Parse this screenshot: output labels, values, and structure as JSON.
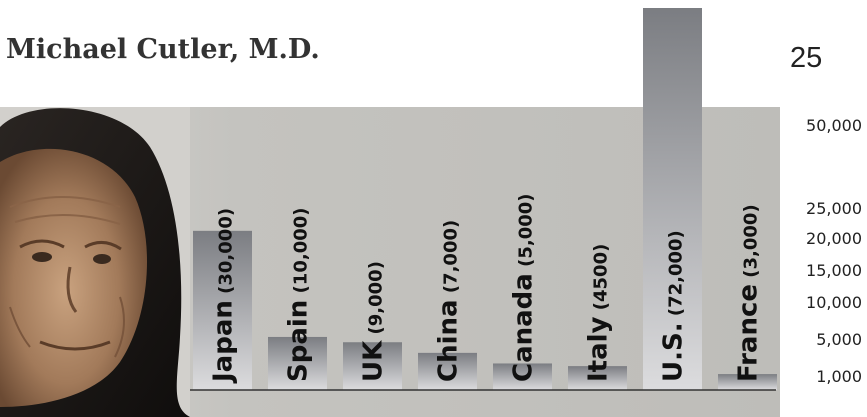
{
  "header": {
    "author": "Michael Cutler, M.D.",
    "page_number": "25"
  },
  "colors": {
    "panel": "#c2c1bd",
    "bar_top": "#7b7d82",
    "bar_bottom": "#dcdcde"
  },
  "chart_data": {
    "type": "bar",
    "title": "",
    "xlabel": "",
    "ylabel": "",
    "categories": [
      "Japan",
      "Spain",
      "UK",
      "China",
      "Canada",
      "Italy",
      "U.S.",
      "France"
    ],
    "value_labels": [
      "(30,000)",
      "(10,000)",
      "(9,000)",
      "(7,000)",
      "(5,000)",
      "(4500)",
      "(72,000)",
      "(3,000)"
    ],
    "values": [
      30000,
      10000,
      9000,
      7000,
      5000,
      4500,
      72000,
      3000
    ],
    "y_ticks": [
      {
        "value": 50000,
        "label": "50,000"
      },
      {
        "value": 25000,
        "label": "25,000"
      },
      {
        "value": 20000,
        "label": "20,000"
      },
      {
        "value": 15000,
        "label": "15,000"
      },
      {
        "value": 10000,
        "label": "10,000"
      },
      {
        "value": 5000,
        "label": "5,000"
      },
      {
        "value": 1000,
        "label": "1,000"
      }
    ],
    "ylim": [
      0,
      72000
    ],
    "grid": false,
    "legend": "none"
  }
}
